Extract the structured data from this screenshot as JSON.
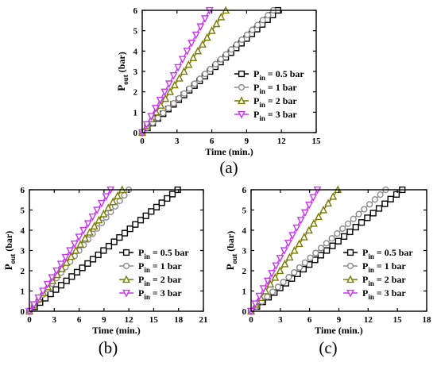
{
  "chart_data": [
    {
      "type": "line",
      "panel_label": "(a)",
      "xlabel": "Time (min.)",
      "ylabel_main": "P",
      "ylabel_sub": "out",
      "ylabel_unit": " (bar)",
      "xlim": [
        0,
        15
      ],
      "ylim": [
        0,
        6
      ],
      "xticks": [
        "0",
        "3",
        "6",
        "9",
        "12",
        "15"
      ],
      "yticks": [
        "0",
        "1",
        "2",
        "3",
        "4",
        "5",
        "6"
      ],
      "legend_position": "right",
      "series": [
        {
          "name": "P",
          "name_sub": "in",
          "name_tail": " = 0.5 bar",
          "marker": "square",
          "color": "#000000",
          "end_x": 11.7,
          "end_y": 6,
          "points": 26
        },
        {
          "name": "P",
          "name_sub": "in",
          "name_tail": " = 1 bar",
          "marker": "circle",
          "color": "#8c8c8c",
          "end_x": 11.3,
          "end_y": 6,
          "points": 25
        },
        {
          "name": "P",
          "name_sub": "in",
          "name_tail": " = 2 bar",
          "marker": "triangle-up",
          "color": "#7a7a00",
          "end_x": 7.2,
          "end_y": 6,
          "points": 18
        },
        {
          "name": "P",
          "name_sub": "in",
          "name_tail": " = 3 bar",
          "marker": "triangle-down",
          "color": "#cc33ff",
          "end_x": 5.8,
          "end_y": 6,
          "points": 15
        }
      ]
    },
    {
      "type": "line",
      "panel_label": "(b)",
      "xlabel": "Time (min.)",
      "ylabel_main": "P",
      "ylabel_sub": "out",
      "ylabel_unit": " (bar)",
      "xlim": [
        0,
        21
      ],
      "ylim": [
        0,
        6
      ],
      "xticks": [
        "0",
        "3",
        "6",
        "9",
        "12",
        "15",
        "18",
        "21"
      ],
      "yticks": [
        "0",
        "1",
        "2",
        "3",
        "4",
        "5",
        "6"
      ],
      "legend_position": "right",
      "series": [
        {
          "name": "P",
          "name_sub": "in",
          "name_tail": " = 0.5 bar",
          "marker": "square",
          "color": "#000000",
          "end_x": 17.9,
          "end_y": 6,
          "points": 28
        },
        {
          "name": "P",
          "name_sub": "in",
          "name_tail": " = 1 bar",
          "marker": "circle",
          "color": "#8c8c8c",
          "end_x": 12.0,
          "end_y": 6,
          "points": 22
        },
        {
          "name": "P",
          "name_sub": "in",
          "name_tail": " = 2 bar",
          "marker": "triangle-up",
          "color": "#7a7a00",
          "end_x": 11.2,
          "end_y": 6,
          "points": 20
        },
        {
          "name": "P",
          "name_sub": "in",
          "name_tail": " = 3 bar",
          "marker": "triangle-down",
          "color": "#cc33ff",
          "end_x": 9.8,
          "end_y": 6,
          "points": 18
        }
      ]
    },
    {
      "type": "line",
      "panel_label": "(c)",
      "xlabel": "Time (min.)",
      "ylabel_main": "P",
      "ylabel_sub": "out",
      "ylabel_unit": " (bar)",
      "xlim": [
        0,
        18
      ],
      "ylim": [
        0,
        6
      ],
      "xticks": [
        "0",
        "3",
        "6",
        "9",
        "12",
        "15",
        "18"
      ],
      "yticks": [
        "0",
        "1",
        "2",
        "3",
        "4",
        "5",
        "6"
      ],
      "legend_position": "right",
      "series": [
        {
          "name": "P",
          "name_sub": "in",
          "name_tail": " = 0.5 bar",
          "marker": "square",
          "color": "#000000",
          "end_x": 15.5,
          "end_y": 6,
          "points": 26
        },
        {
          "name": "P",
          "name_sub": "in",
          "name_tail": " = 1 bar",
          "marker": "circle",
          "color": "#8c8c8c",
          "end_x": 13.8,
          "end_y": 6,
          "points": 25
        },
        {
          "name": "P",
          "name_sub": "in",
          "name_tail": " = 2 bar",
          "marker": "triangle-up",
          "color": "#7a7a00",
          "end_x": 8.9,
          "end_y": 6,
          "points": 18
        },
        {
          "name": "P",
          "name_sub": "in",
          "name_tail": " = 3 bar",
          "marker": "triangle-down",
          "color": "#cc33ff",
          "end_x": 6.8,
          "end_y": 6,
          "points": 16
        }
      ]
    }
  ]
}
